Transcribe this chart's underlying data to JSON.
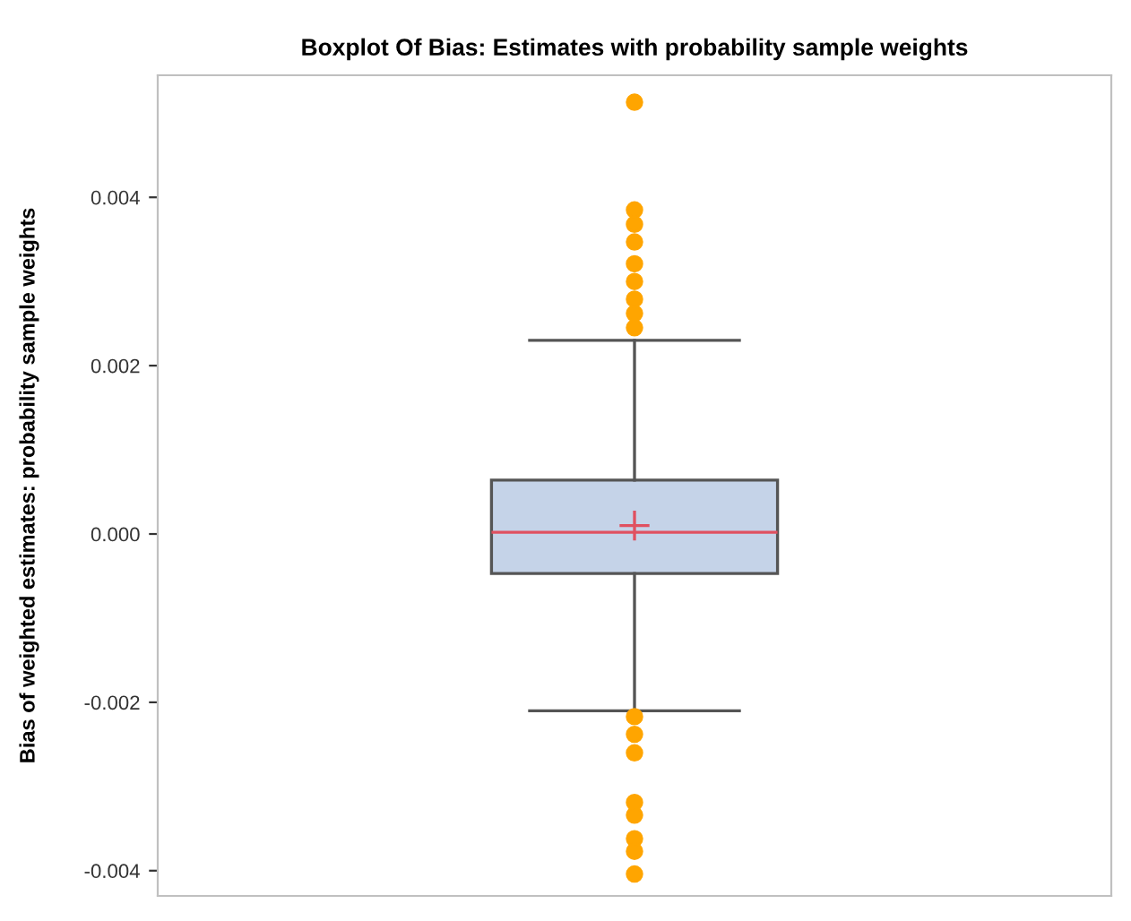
{
  "chart_data": {
    "type": "box",
    "title": "Boxplot Of Bias: Estimates with probability sample weights",
    "ylabel": "Bias of weighted estimates: probability sample weights",
    "categories": [
      null
    ],
    "boxes": [
      {
        "low": -0.0021,
        "q1": -0.00047,
        "median": 2e-05,
        "q3": 0.00064,
        "high": 0.0023,
        "mean": 0.0001,
        "outliers": [
          0.00513,
          0.00385,
          0.00368,
          0.00347,
          0.00321,
          0.003,
          0.00279,
          0.00262,
          0.00245,
          -0.00217,
          -0.00238,
          -0.0026,
          -0.00319,
          -0.00334,
          -0.00362,
          -0.00377,
          -0.00404
        ]
      }
    ],
    "color": "#c5d3e8",
    "ylim": [
      -0.0043,
      0.00545
    ],
    "yticks": [
      {
        "value": -0.004,
        "label": "-0.004"
      },
      {
        "value": -0.002,
        "label": "-0.002"
      },
      {
        "value": 0,
        "label": "0.000"
      },
      {
        "value": 0.002,
        "label": "0.002"
      },
      {
        "value": 0.004,
        "label": "0.004"
      }
    ],
    "grid": false,
    "tick_labels": "y"
  }
}
